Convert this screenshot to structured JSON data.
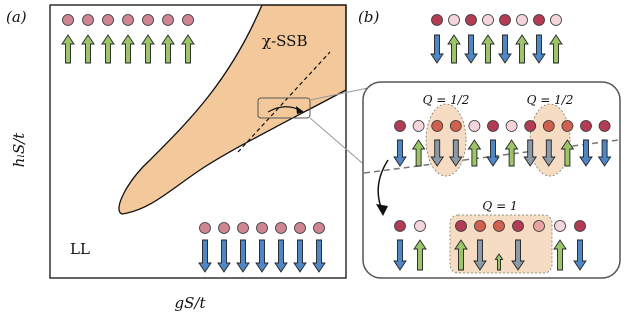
{
  "panel_a": {
    "label": "(a)",
    "y_label": "hₗS/t",
    "x_label": "gS/t",
    "phase_ordered": "χ-SSB",
    "phase_liquid": "LL"
  },
  "panel_b": {
    "label": "(b)",
    "charge_left": "Q = 1/2",
    "charge_right": "Q = 1/2",
    "charge_pair": "Q = 1"
  }
}
